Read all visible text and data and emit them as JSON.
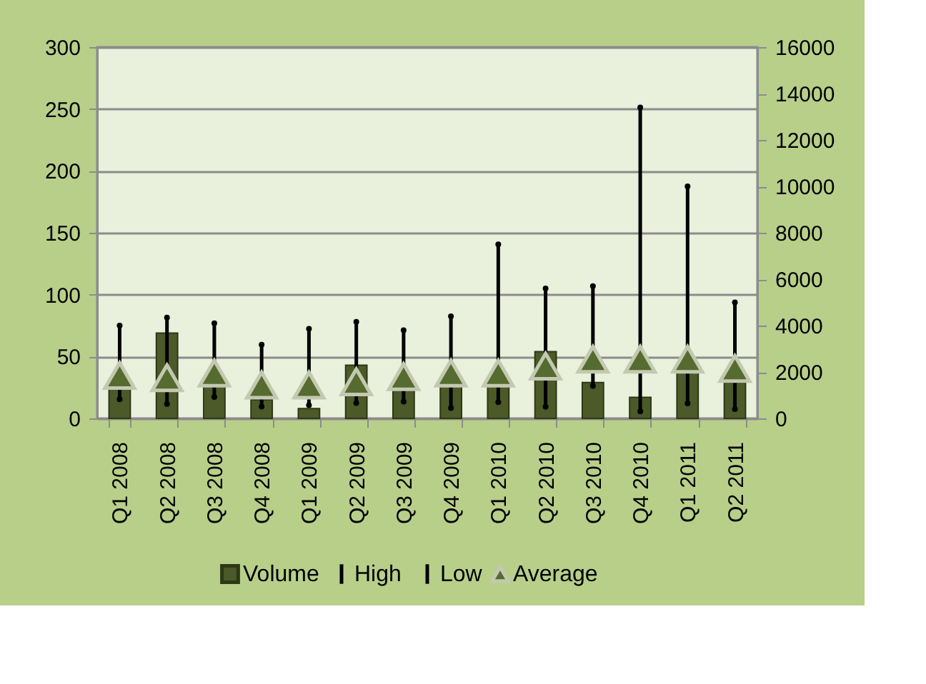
{
  "chart_data": {
    "type": "bar",
    "categories": [
      "Q1 2008",
      "Q2 2008",
      "Q3 2008",
      "Q4 2008",
      "Q1 2009",
      "Q2 2009",
      "Q3 2009",
      "Q4 2009",
      "Q1 2010",
      "Q2 2010",
      "Q3 2010",
      "Q4 2010",
      "Q1 2011",
      "Q2 2011"
    ],
    "series": [
      {
        "name": "Volume",
        "color": "#4b5a28",
        "values": [
          27,
          69,
          27,
          15,
          8,
          43,
          23,
          27,
          27,
          54,
          29,
          17,
          37,
          29
        ]
      },
      {
        "name": "High",
        "type": "scatter",
        "axis": "y2",
        "color": "#000000",
        "values": [
          4000,
          4350,
          4100,
          3180,
          3860,
          4160,
          3800,
          4400,
          7500,
          5600,
          5700,
          13400,
          10000,
          5000
        ]
      },
      {
        "name": "Low",
        "type": "scatter",
        "axis": "y2",
        "color": "#000000",
        "values": [
          820,
          620,
          920,
          510,
          570,
          660,
          720,
          450,
          700,
          500,
          1400,
          300,
          650,
          400
        ]
      },
      {
        "name": "Average",
        "type": "scatter",
        "marker": "triangle",
        "axis": "y2",
        "color": "#556b2f",
        "values": [
          1850,
          1750,
          1950,
          1440,
          1440,
          1580,
          1800,
          1950,
          1950,
          2250,
          2550,
          2550,
          2550,
          2150
        ]
      }
    ],
    "ylim": [
      0,
      300
    ],
    "yticks": [
      0,
      50,
      100,
      150,
      200,
      250,
      300
    ],
    "y2lim": [
      0,
      16000
    ],
    "y2ticks": [
      0,
      2000,
      4000,
      6000,
      8000,
      10000,
      12000,
      14000,
      16000
    ],
    "grid": "y",
    "legend": "bottom"
  }
}
